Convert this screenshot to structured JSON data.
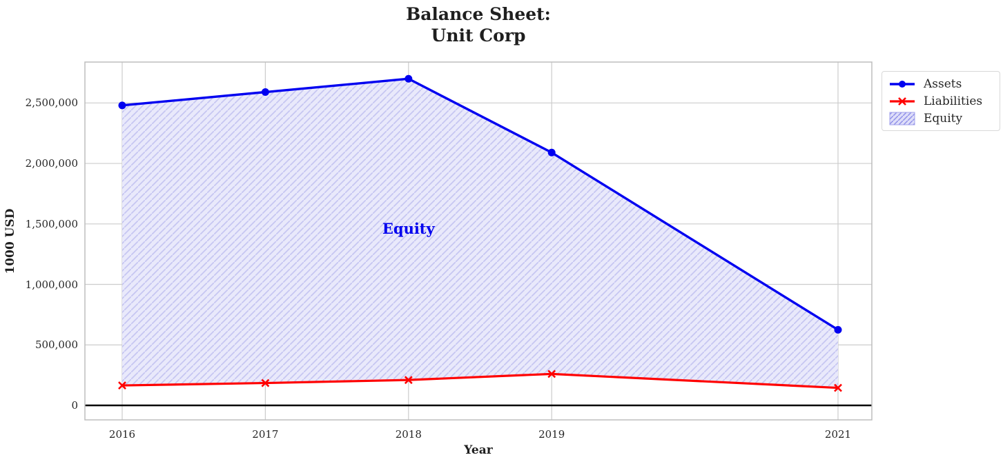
{
  "chart_data": {
    "type": "line",
    "title_lines": [
      "Balance Sheet:",
      "Unit Corp"
    ],
    "xlabel": "Year",
    "ylabel": "1000 USD",
    "x": [
      2016,
      2017,
      2018,
      2019,
      2021
    ],
    "x_tick_labels": [
      "2016",
      "2017",
      "2018",
      "2019",
      "2021"
    ],
    "series": [
      {
        "name": "Assets",
        "color": "#0000f0",
        "marker": "circle",
        "values": [
          2480000,
          2590000,
          2700000,
          2090000,
          625000
        ]
      },
      {
        "name": "Liabilities",
        "color": "#ff0000",
        "marker": "x",
        "values": [
          165000,
          185000,
          210000,
          260000,
          145000
        ]
      }
    ],
    "area": {
      "name": "Equity",
      "between": [
        "Liabilities",
        "Assets"
      ],
      "fill": "#e9e9fb",
      "hatch": "/",
      "hatch_color": "#c6c6f2"
    },
    "annotation": {
      "text": "Equity",
      "x": 2018,
      "y": 1460000,
      "color": "#0000ee"
    },
    "y_ticks": {
      "values": [
        0,
        500000,
        1000000,
        1500000,
        2000000,
        2500000
      ],
      "labels": [
        "0",
        "500,000",
        "1,000,000",
        "1,500,000",
        "2,000,000",
        "2,500,000"
      ]
    },
    "xlim": [
      2015.75,
      2021.25
    ],
    "ylim": [
      -120000,
      2845000
    ],
    "grid": true,
    "grid_color": "#cccccc",
    "spine_color": "#bdbdbd",
    "zero_line": true,
    "zero_line_color": "#000000",
    "legend": {
      "position": "outside-upper-right",
      "entries": [
        {
          "label": "Assets",
          "sample": "line-circle",
          "color": "#0000f0"
        },
        {
          "label": "Liabilities",
          "sample": "line-x",
          "color": "#ff0000"
        },
        {
          "label": "Equity",
          "sample": "hatch-swatch",
          "fill": "#dedef9",
          "hatch_color": "#8f8fe8",
          "edge_color": "#a2a2ec"
        }
      ]
    }
  }
}
